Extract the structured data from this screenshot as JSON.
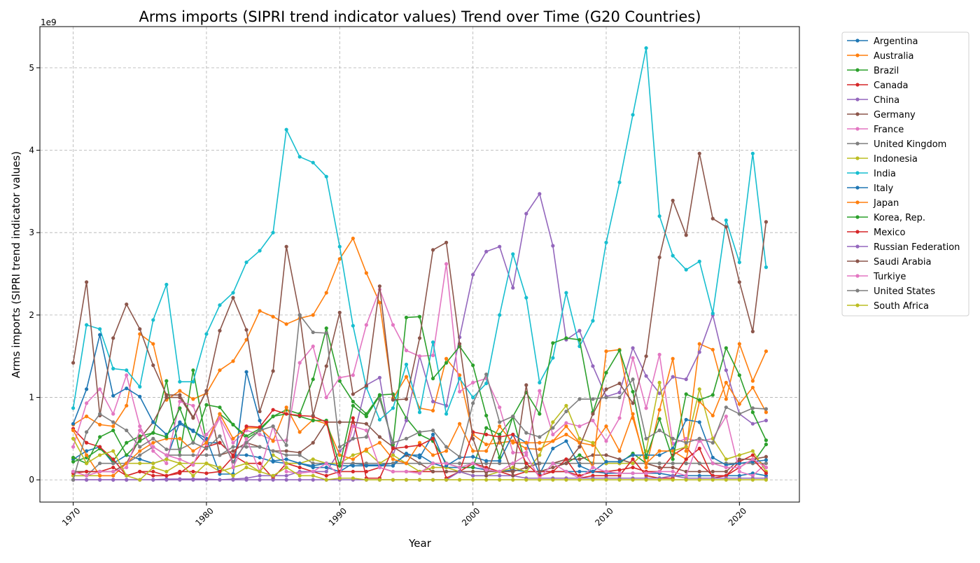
{
  "chart_data": {
    "type": "line",
    "title": "Arms imports (SIPRI trend indicator values) Trend over Time (G20 Countries)",
    "xlabel": "Year",
    "ylabel": "Arms imports (SIPRI trend indicator values)",
    "y_scale_label": "1e9",
    "xlim": [
      1967.5,
      2024.5
    ],
    "ylim": [
      -0.27,
      5.5
    ],
    "x_ticks": [
      1970,
      1980,
      1990,
      2000,
      2010,
      2020
    ],
    "x_tick_labels": [
      "1970",
      "1980",
      "1990",
      "2000",
      "2010",
      "2020"
    ],
    "y_ticks": [
      0,
      1,
      2,
      3,
      4,
      5
    ],
    "y_tick_labels": [
      "0",
      "1",
      "2",
      "3",
      "4",
      "5"
    ],
    "grid": true,
    "legend_position": "outside-right",
    "x": [
      1970,
      1971,
      1972,
      1973,
      1974,
      1975,
      1976,
      1977,
      1978,
      1979,
      1980,
      1981,
      1982,
      1983,
      1984,
      1985,
      1986,
      1987,
      1988,
      1989,
      1990,
      1991,
      1992,
      1993,
      1994,
      1995,
      1996,
      1997,
      1998,
      1999,
      2000,
      2001,
      2002,
      2003,
      2004,
      2005,
      2006,
      2007,
      2008,
      2009,
      2010,
      2011,
      2012,
      2013,
      2014,
      2015,
      2016,
      2017,
      2018,
      2019,
      2020,
      2021,
      2022
    ],
    "series": [
      {
        "name": "Argentina",
        "color": "#1f77b4",
        "values": [
          0.25,
          0.35,
          0.4,
          0.2,
          0.3,
          0.25,
          0.2,
          0.25,
          0.7,
          0.6,
          0.45,
          0.45,
          0.3,
          0.3,
          0.27,
          0.22,
          0.2,
          0.2,
          0.15,
          0.15,
          0.1,
          0.2,
          0.18,
          0.18,
          0.2,
          0.3,
          0.3,
          0.2,
          0.15,
          0.15,
          0.15,
          0.12,
          0.1,
          0.12,
          0.1,
          0.1,
          0.1,
          0.1,
          0.1,
          0.1,
          0.08,
          0.08,
          0.08,
          0.08,
          0.08,
          0.05,
          0.05,
          0.05,
          0.05,
          0.05,
          0.05,
          0.08,
          0.05
        ]
      },
      {
        "name": "Australia",
        "color": "#ff7f0e",
        "values": [
          0.67,
          0.77,
          0.67,
          0.65,
          0.9,
          1.77,
          1.65,
          0.97,
          1.08,
          0.98,
          1.05,
          1.33,
          1.44,
          1.7,
          2.05,
          1.98,
          1.89,
          1.96,
          2.0,
          2.27,
          2.68,
          2.93,
          2.51,
          2.15,
          0.99,
          1.25,
          0.87,
          0.84,
          1.47,
          1.27,
          0.55,
          0.43,
          0.45,
          0.47,
          0.38,
          0.37,
          0.47,
          0.65,
          0.45,
          0.42,
          0.65,
          0.35,
          0.8,
          0.15,
          0.85,
          1.47,
          0.35,
          1.65,
          1.58,
          0.98,
          1.65,
          1.2,
          1.56
        ]
      },
      {
        "name": "Brazil",
        "color": "#2ca02c",
        "values": [
          0.22,
          0.27,
          0.38,
          0.23,
          0.45,
          0.53,
          0.57,
          1.2,
          0.3,
          1.33,
          0.45,
          0.8,
          0.67,
          0.5,
          0.6,
          0.77,
          0.85,
          0.8,
          1.22,
          1.84,
          1.2,
          0.95,
          0.8,
          1.03,
          1.04,
          0.75,
          0.55,
          0.47,
          0.2,
          0.15,
          0.15,
          0.63,
          0.55,
          0.76,
          0.15,
          0.2,
          0.2,
          0.2,
          0.3,
          0.2,
          0.2,
          0.2,
          0.32,
          0.2,
          0.2,
          0.2,
          0.2,
          0.2,
          0.2,
          0.2,
          0.2,
          0.2,
          0.43
        ]
      },
      {
        "name": "Canada",
        "color": "#d62728",
        "values": [
          0.62,
          0.45,
          0.4,
          0.25,
          0.05,
          0.1,
          0.1,
          0.05,
          0.08,
          0.2,
          0.4,
          0.45,
          0.3,
          0.2,
          0.2,
          0.02,
          0.2,
          0.15,
          0.1,
          0.05,
          0.1,
          0.1,
          0.1,
          0.15,
          0.1,
          0.1,
          0.1,
          0.1,
          0.1,
          0.1,
          0.2,
          0.15,
          0.1,
          0.05,
          0.1,
          0.1,
          0.1,
          0.1,
          0.05,
          0.1,
          0.1,
          0.12,
          0.15,
          0.1,
          0.1,
          0.3,
          0.4,
          0.2,
          0.05,
          0.05,
          0.22,
          0.3,
          0.15
        ]
      },
      {
        "name": "China",
        "color": "#9467bd",
        "values": [
          0.0,
          0.0,
          0.0,
          0.0,
          0.0,
          0.0,
          0.0,
          0.01,
          0.01,
          0.01,
          0.01,
          0.0,
          0.01,
          0.02,
          0.05,
          0.05,
          0.05,
          0.1,
          0.1,
          0.1,
          0.35,
          0.5,
          1.15,
          1.24,
          0.3,
          0.72,
          1.5,
          0.95,
          0.9,
          1.73,
          2.49,
          2.77,
          2.83,
          2.33,
          3.23,
          3.47,
          2.84,
          1.7,
          1.81,
          1.38,
          1.01,
          1.06,
          1.6,
          1.26,
          1.05,
          1.25,
          1.22,
          1.55,
          2.0,
          1.33,
          0.8,
          0.68,
          0.72
        ]
      },
      {
        "name": "Germany",
        "color": "#8c564b",
        "values": [
          0.1,
          0.1,
          0.1,
          0.1,
          0.2,
          0.5,
          0.7,
          1.0,
          1.0,
          0.75,
          1.08,
          0.3,
          0.35,
          0.45,
          0.4,
          0.35,
          0.35,
          0.33,
          0.45,
          0.7,
          0.7,
          0.7,
          0.68,
          0.52,
          0.4,
          0.3,
          0.2,
          0.1,
          0.1,
          0.1,
          0.1,
          0.1,
          0.1,
          0.1,
          0.15,
          0.2,
          0.2,
          0.25,
          0.25,
          0.3,
          0.3,
          0.25,
          0.2,
          0.2,
          0.15,
          0.15,
          0.1,
          0.1,
          0.1,
          0.1,
          0.25,
          0.25,
          0.28
        ]
      },
      {
        "name": "France",
        "color": "#e377c2",
        "values": [
          0.4,
          0.93,
          1.1,
          0.8,
          1.27,
          0.65,
          0.35,
          0.2,
          0.95,
          0.9,
          0.43,
          0.75,
          0.45,
          0.6,
          0.55,
          0.48,
          0.48,
          1.42,
          1.62,
          1.0,
          1.24,
          1.27,
          1.88,
          2.31,
          1.88,
          1.57,
          1.5,
          1.51,
          2.62,
          1.07,
          1.18,
          1.23,
          0.88,
          0.33,
          0.33,
          1.08,
          0.55,
          0.69,
          0.65,
          0.72,
          0.47,
          0.75,
          1.48,
          0.87,
          1.52,
          0.44,
          0.5,
          0.47,
          0.5,
          0.77,
          0.1,
          0.05,
          0.2
        ]
      },
      {
        "name": "United Kingdom",
        "color": "#7f7f7f",
        "values": [
          0.05,
          0.05,
          0.2,
          0.2,
          0.2,
          0.3,
          0.4,
          0.3,
          0.3,
          0.3,
          0.3,
          0.3,
          0.4,
          0.4,
          0.4,
          0.35,
          0.3,
          0.3,
          0.2,
          0.2,
          0.2,
          0.2,
          0.2,
          0.2,
          0.2,
          0.2,
          0.2,
          0.2,
          0.2,
          0.2,
          0.2,
          0.2,
          0.2,
          0.2,
          0.2,
          0.2,
          0.2,
          0.2,
          0.2,
          0.2,
          0.2,
          0.2,
          0.2,
          0.2,
          0.2,
          0.2,
          0.2,
          0.2,
          0.2,
          0.2,
          0.2,
          0.2,
          0.2
        ]
      },
      {
        "name": "Indonesia",
        "color": "#bcbd22",
        "values": [
          0.05,
          0.05,
          0.05,
          0.05,
          0.2,
          0.2,
          0.2,
          0.25,
          0.2,
          0.2,
          0.2,
          0.1,
          0.15,
          0.2,
          0.1,
          0.3,
          0.2,
          0.2,
          0.25,
          0.2,
          0.2,
          0.3,
          0.35,
          0.2,
          0.3,
          0.2,
          0.1,
          0.15,
          0.15,
          0.1,
          0.05,
          0.05,
          0.1,
          0.15,
          0.1,
          0.3,
          0.7,
          0.9,
          0.5,
          0.45,
          0.2,
          0.2,
          0.2,
          0.35,
          1.18,
          0.35,
          0.4,
          1.1,
          0.5,
          0.25,
          0.3,
          0.35,
          0.1
        ]
      },
      {
        "name": "India",
        "color": "#17becf",
        "values": [
          0.87,
          1.88,
          1.83,
          1.35,
          1.33,
          1.13,
          1.94,
          2.37,
          1.19,
          1.19,
          1.77,
          2.12,
          2.27,
          2.64,
          2.78,
          3.0,
          4.25,
          3.92,
          3.85,
          3.68,
          2.83,
          1.87,
          1.12,
          0.73,
          0.87,
          1.4,
          0.82,
          1.67,
          0.8,
          1.23,
          1.0,
          1.17,
          2.0,
          2.74,
          2.21,
          1.18,
          1.48,
          2.27,
          1.62,
          1.93,
          2.88,
          3.61,
          4.43,
          5.24,
          3.2,
          2.72,
          2.55,
          2.65,
          2.02,
          3.15,
          2.64,
          3.96,
          2.58
        ]
      },
      {
        "name": "Italy",
        "color": "#1f77b4",
        "values": [
          0.68,
          1.1,
          1.76,
          1.02,
          1.11,
          1.01,
          0.7,
          0.55,
          0.68,
          0.59,
          0.5,
          0.07,
          0.07,
          1.31,
          0.72,
          0.23,
          0.25,
          0.2,
          0.17,
          0.2,
          0.17,
          0.17,
          0.17,
          0.17,
          0.17,
          0.32,
          0.27,
          0.55,
          0.17,
          0.27,
          0.28,
          0.23,
          0.23,
          0.55,
          0.45,
          0.07,
          0.38,
          0.47,
          0.17,
          0.1,
          0.22,
          0.22,
          0.3,
          0.3,
          0.3,
          0.38,
          0.73,
          0.7,
          0.27,
          0.18,
          0.2,
          0.22,
          0.24
        ]
      },
      {
        "name": "Japan",
        "color": "#ff7f0e",
        "values": [
          0.6,
          0.3,
          0.05,
          0.05,
          0.2,
          0.35,
          0.45,
          0.5,
          0.5,
          0.35,
          0.45,
          0.8,
          0.5,
          0.63,
          0.63,
          0.47,
          0.88,
          0.58,
          0.73,
          0.68,
          0.3,
          0.25,
          0.37,
          0.45,
          0.25,
          0.2,
          0.45,
          0.3,
          0.35,
          0.68,
          0.35,
          0.35,
          0.65,
          0.45,
          0.45,
          0.45,
          0.47,
          0.55,
          0.45,
          0.15,
          1.56,
          1.58,
          0.75,
          0.2,
          0.35,
          0.35,
          0.25,
          0.95,
          0.78,
          1.18,
          0.92,
          1.12,
          0.82
        ]
      },
      {
        "name": "Korea, Rep.",
        "color": "#2ca02c",
        "values": [
          0.27,
          0.2,
          0.52,
          0.6,
          0.3,
          0.47,
          0.57,
          0.52,
          0.87,
          0.45,
          0.91,
          0.88,
          0.67,
          0.53,
          0.62,
          0.77,
          0.8,
          0.77,
          0.72,
          0.72,
          0.17,
          0.9,
          0.77,
          1.02,
          0.43,
          1.97,
          1.98,
          1.23,
          1.42,
          1.62,
          1.39,
          0.78,
          0.27,
          0.77,
          1.06,
          0.8,
          1.66,
          1.72,
          1.7,
          0.82,
          1.3,
          1.57,
          1.07,
          0.27,
          0.74,
          0.25,
          1.04,
          0.97,
          1.03,
          1.6,
          1.27,
          0.82,
          0.48
        ]
      },
      {
        "name": "Mexico",
        "color": "#d62728",
        "values": [
          0.08,
          0.1,
          0.1,
          0.15,
          0.05,
          0.1,
          0.05,
          0.05,
          0.1,
          0.1,
          0.08,
          0.1,
          0.28,
          0.65,
          0.64,
          0.85,
          0.8,
          0.78,
          0.77,
          0.7,
          0.05,
          0.75,
          0.02,
          0.02,
          0.38,
          0.4,
          0.42,
          0.5,
          0.02,
          0.1,
          0.58,
          0.55,
          0.52,
          0.55,
          0.2,
          0.05,
          0.1,
          0.25,
          0.02,
          0.05,
          0.05,
          0.05,
          0.25,
          0.05,
          0.02,
          0.02,
          0.25,
          0.38,
          0.02,
          0.05,
          0.15,
          0.25,
          0.08
        ]
      },
      {
        "name": "Russian Federation",
        "color": "#9467bd",
        "values": [
          0.0,
          0.0,
          0.0,
          0.0,
          0.0,
          0.0,
          0.0,
          0.0,
          0.0,
          0.0,
          0.0,
          0.0,
          0.0,
          0.0,
          0.0,
          0.0,
          0.0,
          0.0,
          0.0,
          0.0,
          0.0,
          0.0,
          0.0,
          0.0,
          0.0,
          0.0,
          0.0,
          0.0,
          0.0,
          0.1,
          0.05,
          0.05,
          0.05,
          0.05,
          0.02,
          0.02,
          0.02,
          0.02,
          0.02,
          0.02,
          0.02,
          0.02,
          0.02,
          0.02,
          0.02,
          0.05,
          0.02,
          0.02,
          0.02,
          0.02,
          0.02,
          0.02,
          0.02
        ]
      },
      {
        "name": "Saudi Arabia",
        "color": "#8c564b",
        "values": [
          1.42,
          2.4,
          0.78,
          1.72,
          2.13,
          1.83,
          1.39,
          1.03,
          1.03,
          0.76,
          1.08,
          1.81,
          2.21,
          1.82,
          0.83,
          1.32,
          2.83,
          2.0,
          0.78,
          1.38,
          2.03,
          1.04,
          1.14,
          2.35,
          0.97,
          0.98,
          1.72,
          2.79,
          2.88,
          1.65,
          0.5,
          0.05,
          0.5,
          0.05,
          1.15,
          0.1,
          0.15,
          0.2,
          0.4,
          0.8,
          1.1,
          1.17,
          0.93,
          1.5,
          2.7,
          3.39,
          2.97,
          3.96,
          3.17,
          3.07,
          2.4,
          1.8,
          3.13
        ]
      },
      {
        "name": "Turkiye",
        "color": "#e377c2",
        "values": [
          0.1,
          0.05,
          0.1,
          0.1,
          0.15,
          0.6,
          0.4,
          0.3,
          0.25,
          0.18,
          0.55,
          0.75,
          0.15,
          0.5,
          0.1,
          0.65,
          0.1,
          0.08,
          0.1,
          0.2,
          0.05,
          0.65,
          0.6,
          0.15,
          0.1,
          0.1,
          0.08,
          0.2,
          0.2,
          0.15,
          0.2,
          0.12,
          0.1,
          0.2,
          0.3,
          0.02,
          0.2,
          0.1,
          0.02,
          0.15,
          0.1,
          0.08,
          0.08,
          0.08,
          0.1,
          0.1,
          0.05,
          0.5,
          0.2,
          0.15,
          0.15,
          0.25,
          0.15
        ]
      },
      {
        "name": "United States",
        "color": "#7f7f7f",
        "values": [
          0.0,
          0.58,
          0.8,
          0.7,
          0.6,
          0.4,
          0.5,
          0.37,
          0.37,
          0.45,
          0.38,
          0.53,
          0.22,
          0.45,
          0.6,
          0.65,
          0.42,
          2.0,
          1.79,
          1.78,
          0.4,
          0.5,
          0.52,
          0.98,
          0.45,
          0.5,
          0.58,
          0.6,
          0.4,
          0.28,
          0.93,
          1.28,
          0.7,
          0.77,
          0.57,
          0.52,
          0.63,
          0.83,
          0.98,
          0.98,
          1.0,
          1.0,
          1.22,
          0.5,
          0.6,
          0.5,
          0.45,
          0.5,
          0.45,
          0.88,
          0.8,
          0.87,
          0.86
        ]
      },
      {
        "name": "South Africa",
        "color": "#bcbd22",
        "values": [
          0.5,
          0.2,
          0.3,
          0.35,
          0.05,
          0.0,
          0.15,
          0.1,
          0.2,
          0.05,
          0.2,
          0.15,
          0.05,
          0.15,
          0.1,
          0.05,
          0.15,
          0.05,
          0.05,
          0.0,
          0.02,
          0.02,
          0.0,
          0.0,
          0.0,
          0.0,
          0.0,
          0.0,
          0.0,
          0.0,
          0.0,
          0.0,
          0.0,
          0.0,
          0.0,
          0.0,
          0.0,
          0.0,
          0.0,
          0.0,
          0.0,
          0.0,
          0.0,
          0.0,
          0.0,
          0.0,
          0.0,
          0.0,
          0.0,
          0.0,
          0.0,
          0.0,
          0.0
        ]
      }
    ]
  }
}
